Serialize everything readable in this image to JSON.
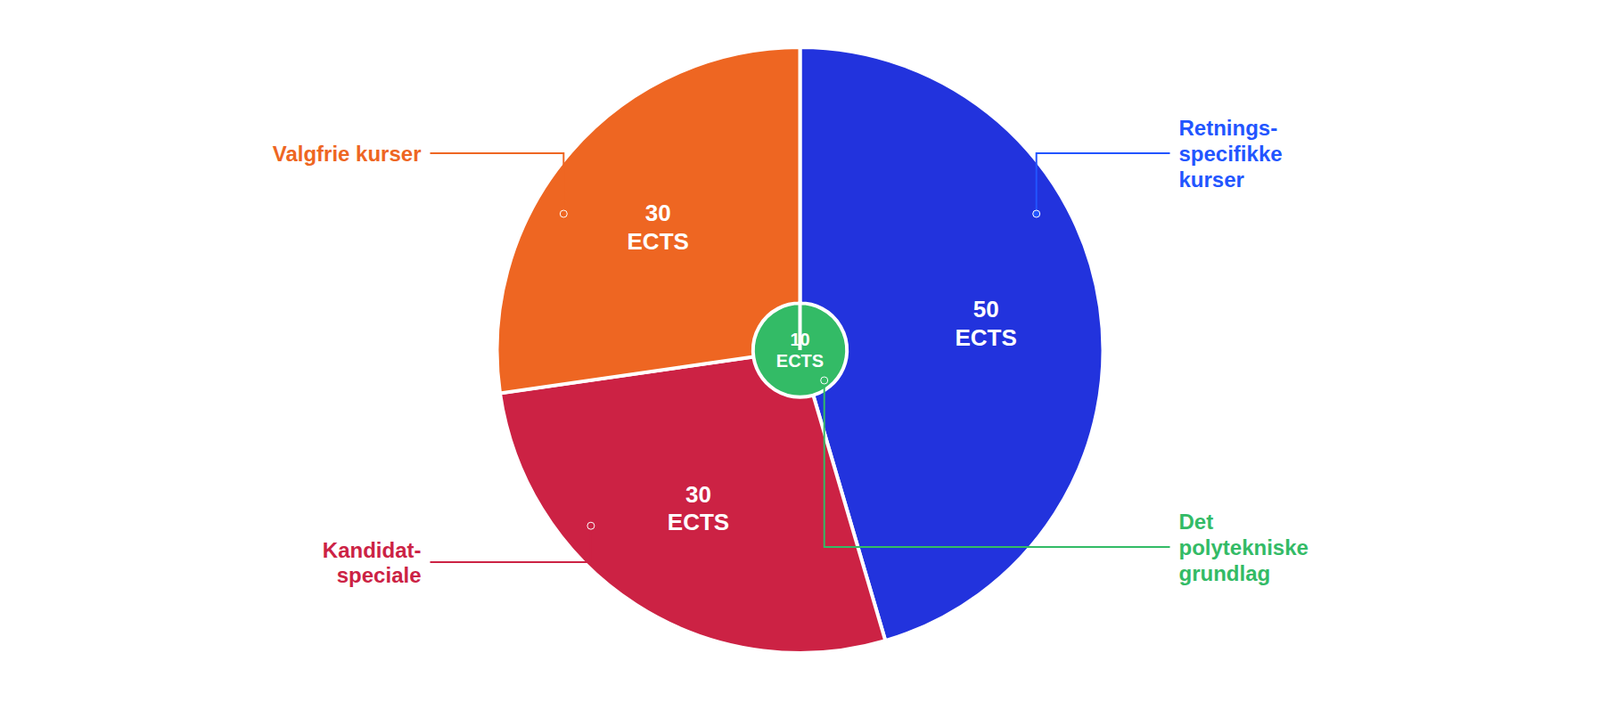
{
  "chart_data": {
    "type": "pie",
    "values": [
      50,
      30,
      30
    ],
    "colors": [
      "#2233dd",
      "#cc2244",
      "#ee6622"
    ],
    "data_labels": true,
    "value_labels": [
      "50\nECTS",
      "30\nECTS",
      "30\nECTS"
    ],
    "center": {
      "value": 10,
      "label": "10\nECTS",
      "color": "#33bb66"
    },
    "annotations": [
      {
        "text": "Retnings-\nspecifikke\nkurser",
        "color": "#2255ff"
      },
      {
        "text": "Kandidat-\nspeciale",
        "color": "#cc2244"
      },
      {
        "text": "Det\npolytekniske\ngrundlag",
        "color": "#33bb66"
      },
      {
        "text": "Valgfrie kurser",
        "color": "#ee6622"
      }
    ]
  }
}
